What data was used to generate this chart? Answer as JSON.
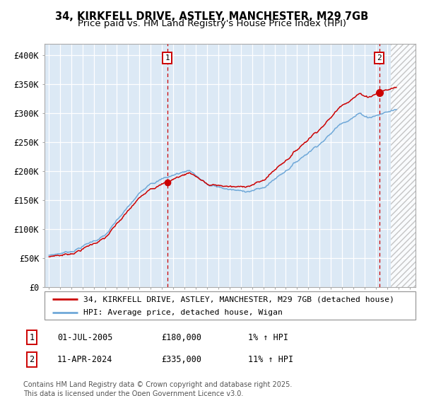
{
  "title1": "34, KIRKFELL DRIVE, ASTLEY, MANCHESTER, M29 7GB",
  "title2": "Price paid vs. HM Land Registry's House Price Index (HPI)",
  "ylim": [
    0,
    420000
  ],
  "yticks": [
    0,
    50000,
    100000,
    150000,
    200000,
    250000,
    300000,
    350000,
    400000
  ],
  "ytick_labels": [
    "£0",
    "£50K",
    "£100K",
    "£150K",
    "£200K",
    "£250K",
    "£300K",
    "£350K",
    "£400K"
  ],
  "xlim_start": 1994.6,
  "xlim_end": 2027.5,
  "bg_color": "#dce9f5",
  "grid_color": "#ffffff",
  "line1_color": "#cc0000",
  "line2_color": "#6fa8d8",
  "marker_color": "#cc0000",
  "vline_color": "#cc0000",
  "transaction1_x": 2005.497,
  "transaction1_y": 180000,
  "transaction2_x": 2024.278,
  "transaction2_y": 335000,
  "future_start": 2025.3,
  "legend_line1": "34, KIRKFELL DRIVE, ASTLEY, MANCHESTER, M29 7GB (detached house)",
  "legend_line2": "HPI: Average price, detached house, Wigan",
  "annotation1_date": "01-JUL-2005",
  "annotation1_price": "£180,000",
  "annotation1_hpi": "1% ↑ HPI",
  "annotation2_date": "11-APR-2024",
  "annotation2_price": "£335,000",
  "annotation2_hpi": "11% ↑ HPI",
  "footer": "Contains HM Land Registry data © Crown copyright and database right 2025.\nThis data is licensed under the Open Government Licence v3.0."
}
